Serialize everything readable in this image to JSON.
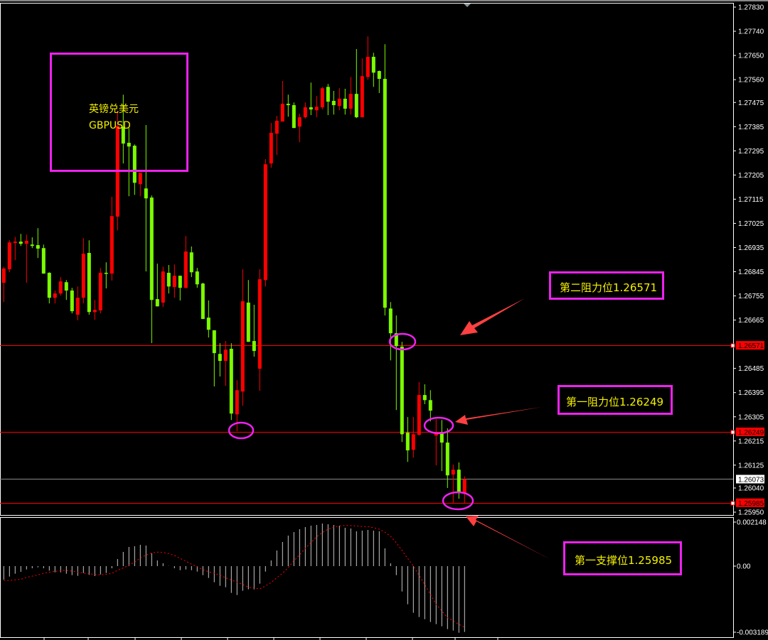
{
  "instrument": {
    "name_cn": "英镑兑美元",
    "symbol": "GBPUSD"
  },
  "annotations": {
    "resistance_2": "第二阻力位1.26571",
    "resistance_1": "第一阻力位1.26249",
    "support_1": "第一支撑位1.25985"
  },
  "colors": {
    "background": "#000000",
    "up_candle": "#ff0000",
    "down_candle": "#7cfc00",
    "level_line": "#ff0000",
    "current_price_line": "#8c8c8c",
    "annotation_box": "#ee22ee",
    "annotation_text": "#f4f000",
    "arrow": "#ff4040",
    "macd_histogram": "#c8c8c8",
    "macd_signal": "#ff0000"
  },
  "chart_data": [
    {
      "type": "candlestick",
      "symbol": "GBPUSD",
      "ylim": [
        1.25935,
        1.2784
      ],
      "y_ticks": [
        "1.27830",
        "1.27740",
        "1.27650",
        "1.27560",
        "1.27475",
        "1.27385",
        "1.27295",
        "1.27205",
        "1.27115",
        "1.27025",
        "1.26935",
        "1.26845",
        "1.26755",
        "1.26665",
        "1.26485",
        "1.26395",
        "1.26305",
        "1.26215",
        "1.26125",
        "1.26040",
        "1.25950"
      ],
      "levels": [
        {
          "price": "1.26571",
          "kind": "resistance"
        },
        {
          "price": "1.26249",
          "kind": "resistance"
        },
        {
          "price": "1.25985",
          "kind": "support"
        }
      ],
      "current_price": "1.26073",
      "ohlc_fields": [
        "open",
        "high",
        "low",
        "close"
      ],
      "ohlc": [
        [
          1.26804,
          1.26864,
          1.26732,
          1.26857
        ],
        [
          1.26854,
          1.26962,
          1.26843,
          1.26954
        ],
        [
          1.26952,
          1.26975,
          1.26888,
          1.26957
        ],
        [
          1.26957,
          1.26986,
          1.26941,
          1.26949
        ],
        [
          1.26949,
          1.26983,
          1.26804,
          1.2696
        ],
        [
          1.26946,
          1.26973,
          1.26933,
          1.26941
        ],
        [
          1.26944,
          1.27007,
          1.26896,
          1.26931
        ],
        [
          1.26933,
          1.26946,
          1.26838,
          1.26838
        ],
        [
          1.26841,
          1.26843,
          1.26727,
          1.26748
        ],
        [
          1.26748,
          1.26775,
          1.26727,
          1.26764
        ],
        [
          1.26764,
          1.26825,
          1.26756,
          1.26809
        ],
        [
          1.26806,
          1.26814,
          1.2674,
          1.26775
        ],
        [
          1.26775,
          1.26785,
          1.2669,
          1.26698
        ],
        [
          1.26685,
          1.2679,
          1.26664,
          1.26748
        ],
        [
          1.26748,
          1.2697,
          1.26727,
          1.26912
        ],
        [
          1.26915,
          1.26962,
          1.26685,
          1.26695
        ],
        [
          1.26695,
          1.2674,
          1.26666,
          1.26703
        ],
        [
          1.26701,
          1.26859,
          1.2669,
          1.26841
        ],
        [
          1.26841,
          1.2688,
          1.26783,
          1.26838
        ],
        [
          1.26838,
          1.27124,
          1.26812,
          1.27052
        ],
        [
          1.2705,
          1.27444,
          1.26999,
          1.27388
        ],
        [
          1.27385,
          1.27504,
          1.27248,
          1.27322
        ],
        [
          1.27325,
          1.2738,
          1.27126,
          1.27311
        ],
        [
          1.27314,
          1.27319,
          1.27131,
          1.27176
        ],
        [
          1.27171,
          1.27213,
          1.27126,
          1.27213
        ],
        [
          1.27155,
          1.27391,
          1.26846,
          1.27118
        ],
        [
          1.27121,
          1.27129,
          1.26579,
          1.2674
        ],
        [
          1.26743,
          1.26875,
          1.26716,
          1.26716
        ],
        [
          1.2673,
          1.26864,
          1.26714,
          1.26846
        ],
        [
          1.26841,
          1.2687,
          1.26764,
          1.2679
        ],
        [
          1.26788,
          1.26872,
          1.26748,
          1.2683
        ],
        [
          1.2683,
          1.2683,
          1.26738,
          1.26785
        ],
        [
          1.26785,
          1.26978,
          1.26783,
          1.2692
        ],
        [
          1.26917,
          1.26939,
          1.26825,
          1.26843
        ],
        [
          1.26846,
          1.26859,
          1.26785,
          1.26798
        ],
        [
          1.26801,
          1.26804,
          1.26669,
          1.26669
        ],
        [
          1.26674,
          1.26738,
          1.266,
          1.26629
        ],
        [
          1.26627,
          1.26627,
          1.26418,
          1.26542
        ],
        [
          1.26539,
          1.26579,
          1.26455,
          1.26513
        ],
        [
          1.26513,
          1.26587,
          1.2642,
          1.26555
        ],
        [
          1.26558,
          1.26579,
          1.26293,
          1.26317
        ],
        [
          1.26314,
          1.26441,
          1.26251,
          1.26404
        ],
        [
          1.26399,
          1.26854,
          1.26346,
          1.26735
        ],
        [
          1.2673,
          1.26814,
          1.26584,
          1.26584
        ],
        [
          1.26587,
          1.26722,
          1.26529,
          1.2655
        ],
        [
          1.26484,
          1.26854,
          1.26402,
          1.26817
        ],
        [
          1.26814,
          1.27264,
          1.2679,
          1.27245
        ],
        [
          1.27248,
          1.27399,
          1.27232,
          1.27362
        ],
        [
          1.27359,
          1.27425,
          1.2728,
          1.27407
        ],
        [
          1.27404,
          1.27555,
          1.27404,
          1.2747
        ],
        [
          1.2747,
          1.27504,
          1.27422,
          1.27465
        ],
        [
          1.27465,
          1.27475,
          1.2738,
          1.2738
        ],
        [
          1.27385,
          1.27433,
          1.27327,
          1.2742
        ],
        [
          1.2742,
          1.27475,
          1.27415,
          1.27457
        ],
        [
          1.27457,
          1.27549,
          1.27428,
          1.27449
        ],
        [
          1.27446,
          1.27499,
          1.2742,
          1.27459
        ],
        [
          1.27457,
          1.27533,
          1.27449,
          1.27528
        ],
        [
          1.27533,
          1.27544,
          1.27428,
          1.27478
        ],
        [
          1.27481,
          1.27518,
          1.2743,
          1.27465
        ],
        [
          1.27462,
          1.27528,
          1.27446,
          1.27489
        ],
        [
          1.27489,
          1.27526,
          1.2743,
          1.27452
        ],
        [
          1.27452,
          1.2757,
          1.2743,
          1.27507
        ],
        [
          1.27507,
          1.27674,
          1.27417,
          1.2742
        ],
        [
          1.2742,
          1.27639,
          1.2742,
          1.27573
        ],
        [
          1.2757,
          1.27721,
          1.2756,
          1.27645
        ],
        [
          1.27645,
          1.2766,
          1.27533,
          1.27586
        ],
        [
          1.27592,
          1.27594,
          1.2751,
          1.27563
        ],
        [
          1.27563,
          1.27692,
          1.26682,
          1.26711
        ],
        [
          1.26708,
          1.26732,
          1.26515,
          1.26616
        ],
        [
          1.26616,
          1.26682,
          1.2633,
          1.26568
        ],
        [
          1.26566,
          1.26584,
          1.26211,
          1.2624
        ],
        [
          1.26246,
          1.26304,
          1.26137,
          1.2618
        ],
        [
          1.26182,
          1.26304,
          1.26153,
          1.2624
        ],
        [
          1.26238,
          1.26434,
          1.26235,
          1.26386
        ],
        [
          1.26386,
          1.26426,
          1.26352,
          1.26367
        ],
        [
          1.26367,
          1.26404,
          1.26288,
          1.26328
        ],
        [
          1.26235,
          1.26296,
          1.26124,
          1.26243
        ],
        [
          1.26248,
          1.26293,
          1.26103,
          1.26209
        ],
        [
          1.26209,
          1.26262,
          1.2604,
          1.26087
        ],
        [
          1.2609,
          1.26127,
          1.25984,
          1.26108
        ],
        [
          1.26108,
          1.26135,
          1.26,
          1.26021
        ],
        [
          1.26021,
          1.26083,
          1.25984,
          1.26073
        ]
      ]
    },
    {
      "type": "bar",
      "indicator": "MACD",
      "ylim": [
        -0.003189,
        0.002148
      ],
      "y_ticks": [
        "0.002148",
        "0.00",
        "-0.003189"
      ],
      "histogram": [
        -0.000646,
        -0.0005,
        -0.000364,
        -0.000272,
        -0.00016,
        -0.000102,
        -5.8e-05,
        -0.000102,
        -0.000214,
        -0.000296,
        -0.000296,
        -0.000364,
        -0.000432,
        -0.000466,
        -0.00033,
        -0.000418,
        -0.000476,
        -0.000398,
        -0.00033,
        -0.000102,
        0.00034,
        0.00068,
        0.000918,
        0.000952,
        0.00102,
        0.000986,
        0.000612,
        0.000272,
        0.000136,
        1e-05,
        -0.000102,
        -0.000194,
        -0.00016,
        -0.000194,
        -0.000262,
        -0.000432,
        -0.000568,
        -0.000772,
        -0.000942,
        -0.00101,
        -0.001282,
        -0.001384,
        -0.00118,
        -0.001112,
        -0.001112,
        -0.00084,
        -0.000262,
        0.000272,
        0.000748,
        0.001156,
        0.001462,
        0.001632,
        0.001768,
        0.00187,
        0.001938,
        0.001972,
        0.00204,
        0.002006,
        0.001972,
        0.001938,
        0.001836,
        0.001802,
        0.001666,
        0.0017,
        0.001734,
        0.0017,
        0.001666,
        0.00085,
        0.000136,
        -0.000432,
        -0.001214,
        -0.001826,
        -0.002234,
        -0.002438,
        -0.00254,
        -0.002676,
        -0.002778,
        -0.00288,
        -0.003016,
        -0.003084,
        -0.003189,
        -0.003152
      ],
      "signal": [
        -0.00068,
        -0.00069,
        -0.00066,
        -0.00063,
        -0.00054,
        -0.00048,
        -0.00042,
        -0.00034,
        -0.00029,
        -0.00025,
        -0.00022,
        -0.0002,
        -0.00024,
        -0.00029,
        -0.00033,
        -0.00037,
        -0.0004,
        -0.00042,
        -0.00039,
        -0.00035,
        -0.0002,
        -9e-05,
        5e-05,
        0.00019,
        0.00039,
        0.00053,
        0.00063,
        0.00067,
        0.00065,
        0.0006,
        0.00051,
        0.00037,
        0.00024,
        9e-05,
        -3e-05,
        -0.00017,
        -0.00027,
        -0.00034,
        -0.00044,
        -0.00056,
        -0.00066,
        -0.00077,
        -0.00088,
        -0.00101,
        -0.00105,
        -0.00109,
        -0.00095,
        -0.00078,
        -0.00056,
        -0.00034,
        -7e-05,
        0.00026,
        0.00054,
        0.00085,
        0.00112,
        0.00141,
        0.0016,
        0.00177,
        0.00187,
        0.00192,
        0.00195,
        0.00194,
        0.00192,
        0.0019,
        0.00189,
        0.00184,
        0.00177,
        0.00163,
        0.00143,
        0.00112,
        0.00075,
        0.00037,
        0.0,
        -0.00044,
        -0.00088,
        -0.00136,
        -0.00183,
        -0.00214,
        -0.00247,
        -0.00262,
        -0.00279,
        -0.00292
      ]
    }
  ]
}
